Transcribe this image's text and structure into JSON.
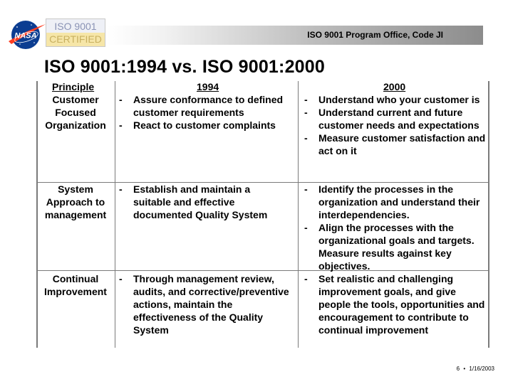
{
  "header": {
    "logo_text": "NASA",
    "cert_line1": "ISO 9001",
    "cert_line2": "CERTIFIED",
    "banner_title": "ISO 9001 Program Office, Code JI"
  },
  "page_title": "ISO 9001:1994 vs. ISO 9001:2000",
  "table": {
    "headers": {
      "principle": "Principle",
      "v1994": "1994",
      "v2000": "2000"
    },
    "rows": [
      {
        "principle": [
          "Customer",
          "Focused",
          "Organization"
        ],
        "v1994": [
          "Assure conformance to defined customer requirements",
          "React to customer complaints"
        ],
        "v2000": [
          "Understand who your customer is",
          "Understand current and future customer needs and expectations",
          "Measure customer satisfaction and act on it"
        ]
      },
      {
        "principle": [
          "System",
          "Approach to",
          "management"
        ],
        "v1994": [
          "Establish and maintain a suitable and effective documented Quality System"
        ],
        "v2000": [
          "Identify the processes in the organization and understand their interdependencies.",
          "Align the processes with the organizational goals and targets.  Measure results against key objectives."
        ]
      },
      {
        "principle": [
          "Continual",
          "Improvement"
        ],
        "v1994": [
          "Through management review, audits, and corrective/preventive actions, maintain the effectiveness of the Quality System"
        ],
        "v2000": [
          "Set realistic and challenging improvement goals, and give people the tools, opportunities and encouragement to contribute to continual improvement"
        ]
      }
    ]
  },
  "footer": {
    "page_number": "6",
    "separator": "•",
    "date": "1/16/2003"
  },
  "colors": {
    "nasa_blue": "#0b3d91",
    "nasa_red": "#fc3d21",
    "cert_gold": "#f6e6a8",
    "grid_line": "#7a7a7a"
  }
}
